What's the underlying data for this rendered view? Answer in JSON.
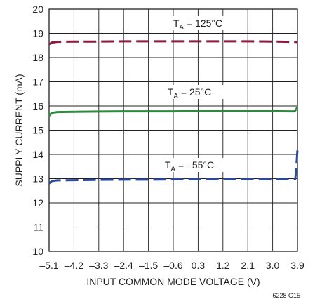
{
  "chart_data": {
    "type": "line",
    "xlabel": "INPUT COMMON MODE VOLTAGE (V)",
    "ylabel": "SUPPLY CURRENT (mA)",
    "xlim": [
      -5.1,
      3.9
    ],
    "ylim": [
      10,
      20
    ],
    "x_ticks": [
      "–5.1",
      "–4.2",
      "–3.3",
      "–2.4",
      "–1.5",
      "–0.6",
      "0.3",
      "1.2",
      "2.1",
      "3.0",
      "3.9"
    ],
    "y_ticks": [
      "10",
      "11",
      "12",
      "13",
      "14",
      "15",
      "16",
      "17",
      "18",
      "19",
      "20"
    ],
    "grid": true,
    "figure_id": "6228 G15",
    "series": [
      {
        "name": "TA = 125°C",
        "label_main": "T",
        "label_sub": "A",
        "label_rest": " = 125°C",
        "color": "#8b1a3c",
        "dash": "dashed",
        "x": [
          -5.1,
          -5.0,
          -4.8,
          -4.2,
          -3.3,
          -2.4,
          -1.5,
          -0.6,
          0.3,
          1.2,
          2.1,
          3.0,
          3.6,
          3.9
        ],
        "y": [
          18.55,
          18.62,
          18.65,
          18.66,
          18.66,
          18.67,
          18.67,
          18.67,
          18.67,
          18.67,
          18.67,
          18.66,
          18.65,
          18.64
        ]
      },
      {
        "name": "TA = 25°C",
        "label_main": "T",
        "label_sub": "A",
        "label_rest": " = 25°C",
        "color": "#2e8b3e",
        "dash": "solid",
        "x": [
          -5.1,
          -5.0,
          -4.8,
          -4.2,
          -3.3,
          -2.4,
          -1.5,
          -0.6,
          0.3,
          1.2,
          2.1,
          3.0,
          3.6,
          3.8,
          3.9
        ],
        "y": [
          15.6,
          15.72,
          15.75,
          15.76,
          15.77,
          15.78,
          15.78,
          15.78,
          15.79,
          15.79,
          15.79,
          15.79,
          15.78,
          15.78,
          15.95
        ]
      },
      {
        "name": "TA = –55°C",
        "label_main": "T",
        "label_sub": "A",
        "label_rest": " = –55°C",
        "color": "#2b4a9e",
        "dash": "dashed",
        "x": [
          -5.1,
          -5.0,
          -4.8,
          -4.2,
          -3.3,
          -2.4,
          -1.5,
          -0.6,
          0.3,
          1.2,
          2.1,
          3.0,
          3.6,
          3.82,
          3.86,
          3.9
        ],
        "y": [
          12.8,
          12.9,
          12.93,
          12.94,
          12.95,
          12.96,
          12.96,
          12.97,
          12.97,
          12.97,
          12.98,
          12.98,
          12.98,
          12.99,
          13.5,
          14.2
        ]
      }
    ]
  }
}
